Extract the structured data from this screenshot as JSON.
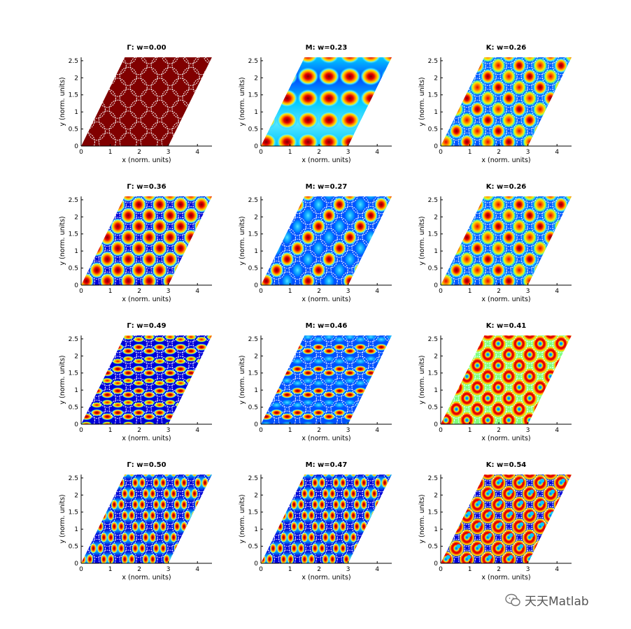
{
  "chart_data": [
    {
      "type": "heatmap",
      "title": "Γ: w=0.00",
      "xlabel": "x (norm. units)",
      "ylabel": "y (norm. units)",
      "xlim": [
        0,
        4.5
      ],
      "ylim": [
        0,
        2.6
      ],
      "xticks": [
        "0",
        "1",
        "2",
        "3",
        "4"
      ],
      "yticks": [
        "0",
        "0.5",
        "1",
        "1.5",
        "2",
        "2.5"
      ],
      "pattern": "uniform",
      "colormap": "jet"
    },
    {
      "type": "heatmap",
      "title": "M: w=0.23",
      "xlabel": "x (norm. units)",
      "ylabel": "y (norm. units)",
      "xlim": [
        0,
        4.5
      ],
      "ylim": [
        0,
        2.6
      ],
      "xticks": [
        "0",
        "1",
        "2",
        "3",
        "4"
      ],
      "yticks": [
        "0",
        "0.5",
        "1",
        "1.5",
        "2",
        "2.5"
      ],
      "pattern": "bands",
      "colormap": "jet"
    },
    {
      "type": "heatmap",
      "title": "K: w=0.26",
      "xlabel": "x (norm. units)",
      "ylabel": "y (norm. units)",
      "xlim": [
        0,
        4.5
      ],
      "ylim": [
        0,
        2.6
      ],
      "xticks": [
        "0",
        "1",
        "2",
        "3",
        "4"
      ],
      "yticks": [
        "0",
        "0.5",
        "1",
        "1.5",
        "2",
        "2.5"
      ],
      "pattern": "diagonal",
      "colormap": "jet"
    },
    {
      "type": "heatmap",
      "title": "Γ: w=0.36",
      "xlabel": "x (norm. units)",
      "ylabel": "y (norm. units)",
      "xlim": [
        0,
        4.5
      ],
      "ylim": [
        0,
        2.6
      ],
      "xticks": [
        "0",
        "1",
        "2",
        "3",
        "4"
      ],
      "yticks": [
        "0",
        "0.5",
        "1",
        "1.5",
        "2",
        "2.5"
      ],
      "pattern": "spots",
      "colormap": "jet"
    },
    {
      "type": "heatmap",
      "title": "M: w=0.27",
      "xlabel": "x (norm. units)",
      "ylabel": "y (norm. units)",
      "xlim": [
        0,
        4.5
      ],
      "ylim": [
        0,
        2.6
      ],
      "xticks": [
        "0",
        "1",
        "2",
        "3",
        "4"
      ],
      "yticks": [
        "0",
        "0.5",
        "1",
        "1.5",
        "2",
        "2.5"
      ],
      "pattern": "columns",
      "colormap": "jet"
    },
    {
      "type": "heatmap",
      "title": "K: w=0.26",
      "xlabel": "x (norm. units)",
      "ylabel": "y (norm. units)",
      "xlim": [
        0,
        4.5
      ],
      "ylim": [
        0,
        2.6
      ],
      "xticks": [
        "0",
        "1",
        "2",
        "3",
        "4"
      ],
      "yticks": [
        "0",
        "0.5",
        "1",
        "1.5",
        "2",
        "2.5"
      ],
      "pattern": "diagonal",
      "colormap": "jet"
    },
    {
      "type": "heatmap",
      "title": "Γ: w=0.49",
      "xlabel": "x (norm. units)",
      "ylabel": "y (norm. units)",
      "xlim": [
        0,
        4.5
      ],
      "ylim": [
        0,
        2.6
      ],
      "xticks": [
        "0",
        "1",
        "2",
        "3",
        "4"
      ],
      "yticks": [
        "0",
        "0.5",
        "1",
        "1.5",
        "2",
        "2.5"
      ],
      "pattern": "split",
      "colormap": "jet"
    },
    {
      "type": "heatmap",
      "title": "M: w=0.46",
      "xlabel": "x (norm. units)",
      "ylabel": "y (norm. units)",
      "xlim": [
        0,
        4.5
      ],
      "ylim": [
        0,
        2.6
      ],
      "xticks": [
        "0",
        "1",
        "2",
        "3",
        "4"
      ],
      "yticks": [
        "0",
        "0.5",
        "1",
        "1.5",
        "2",
        "2.5"
      ],
      "pattern": "split-light",
      "colormap": "jet"
    },
    {
      "type": "heatmap",
      "title": "K: w=0.41",
      "xlabel": "x (norm. units)",
      "ylabel": "y (norm. units)",
      "xlim": [
        0,
        4.5
      ],
      "ylim": [
        0,
        2.6
      ],
      "xticks": [
        "0",
        "1",
        "2",
        "3",
        "4"
      ],
      "yticks": [
        "0",
        "0.5",
        "1",
        "1.5",
        "2",
        "2.5"
      ],
      "pattern": "rings",
      "colormap": "jet"
    },
    {
      "type": "heatmap",
      "title": "Γ: w=0.50",
      "xlabel": "x (norm. units)",
      "ylabel": "y (norm. units)",
      "xlim": [
        0,
        4.5
      ],
      "ylim": [
        0,
        2.6
      ],
      "xticks": [
        "0",
        "1",
        "2",
        "3",
        "4"
      ],
      "yticks": [
        "0",
        "0.5",
        "1",
        "1.5",
        "2",
        "2.5"
      ],
      "pattern": "lobes",
      "colormap": "jet"
    },
    {
      "type": "heatmap",
      "title": "M: w=0.47",
      "xlabel": "x (norm. units)",
      "ylabel": "y (norm. units)",
      "xlim": [
        0,
        4.5
      ],
      "ylim": [
        0,
        2.6
      ],
      "xticks": [
        "0",
        "1",
        "2",
        "3",
        "4"
      ],
      "yticks": [
        "0",
        "0.5",
        "1",
        "1.5",
        "2",
        "2.5"
      ],
      "pattern": "lobes",
      "colormap": "jet"
    },
    {
      "type": "heatmap",
      "title": "K: w=0.54",
      "xlabel": "x (norm. units)",
      "ylabel": "y (norm. units)",
      "xlim": [
        0,
        4.5
      ],
      "ylim": [
        0,
        2.6
      ],
      "xticks": [
        "0",
        "1",
        "2",
        "3",
        "4"
      ],
      "yticks": [
        "0",
        "0.5",
        "1",
        "1.5",
        "2",
        "2.5"
      ],
      "pattern": "ring-dots",
      "colormap": "jet"
    }
  ],
  "watermark": {
    "text": "天天Matlab",
    "icon": "wechat-icon"
  }
}
